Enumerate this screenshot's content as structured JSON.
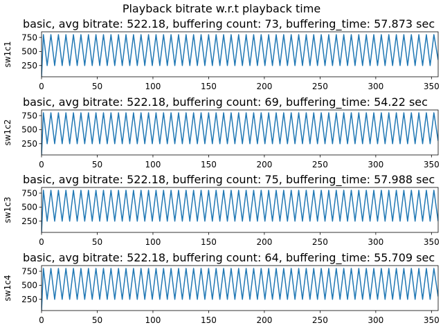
{
  "figure_title": "Playback bitrate w.r.t playback time",
  "colors": {
    "line": "#1f77b4",
    "axes": "#000000",
    "background": "#ffffff"
  },
  "chart_data": [
    {
      "type": "line",
      "title": "basic, avg bitrate: 522.18, buffering count: 73, buffering_time: 57.873 sec",
      "xlabel": "",
      "ylabel": "sw1c1",
      "xlim": [
        0,
        356
      ],
      "ylim": [
        50,
        850
      ],
      "xticks": [
        0,
        50,
        100,
        150,
        200,
        250,
        300,
        350
      ],
      "yticks": [
        250,
        500,
        750
      ],
      "series": [
        {
          "name": "sw1c1",
          "pattern": "triangle",
          "period": 6.74,
          "min": 250,
          "max": 800,
          "start_value": 50,
          "end_value": 350
        }
      ]
    },
    {
      "type": "line",
      "title": "basic, avg bitrate: 522.18, buffering count: 69, buffering_time: 54.22 sec",
      "xlabel": "",
      "ylabel": "sw1c2",
      "xlim": [
        0,
        356
      ],
      "ylim": [
        50,
        850
      ],
      "xticks": [
        0,
        50,
        100,
        150,
        200,
        250,
        300,
        350
      ],
      "yticks": [
        250,
        500,
        750
      ],
      "series": [
        {
          "name": "sw1c2",
          "pattern": "triangle",
          "period": 6.74,
          "min": 250,
          "max": 800,
          "start_value": 50,
          "end_value": 300
        }
      ]
    },
    {
      "type": "line",
      "title": "basic, avg bitrate: 522.18, buffering count: 75, buffering_time: 57.988 sec",
      "xlabel": "",
      "ylabel": "sw1c3",
      "xlim": [
        0,
        356
      ],
      "ylim": [
        50,
        850
      ],
      "xticks": [
        0,
        50,
        100,
        150,
        200,
        250,
        300,
        350
      ],
      "yticks": [
        250,
        500,
        750
      ],
      "series": [
        {
          "name": "sw1c3",
          "pattern": "triangle",
          "period": 6.74,
          "min": 250,
          "max": 800,
          "start_value": 50,
          "end_value": 250
        }
      ]
    },
    {
      "type": "line",
      "title": "basic, avg bitrate: 522.18, buffering count: 64, buffering_time: 55.709 sec",
      "xlabel": "",
      "ylabel": "sw1c4",
      "xlim": [
        0,
        356
      ],
      "ylim": [
        50,
        850
      ],
      "xticks": [
        0,
        50,
        100,
        150,
        200,
        250,
        300,
        350
      ],
      "yticks": [
        250,
        500,
        750
      ],
      "series": [
        {
          "name": "sw1c4",
          "pattern": "triangle",
          "period": 6.74,
          "min": 250,
          "max": 800,
          "start_value": 50,
          "end_value": 300
        }
      ]
    }
  ]
}
